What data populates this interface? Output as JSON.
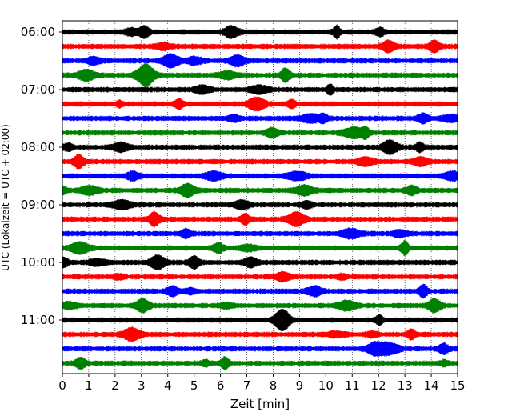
{
  "chart_data": {
    "type": "line",
    "title": "",
    "xlabel": "Zeit  [min]",
    "ylabel": "UTC (Lokalzeit = UTC + 02:00)",
    "xlim": [
      0,
      15
    ],
    "x_ticks": [
      "0",
      "1",
      "2",
      "3",
      "4",
      "5",
      "6",
      "7",
      "8",
      "9",
      "10",
      "11",
      "12",
      "13",
      "14",
      "15"
    ],
    "y_tick_labels": [
      "06:00",
      "07:00",
      "08:00",
      "09:00",
      "10:00",
      "11:00"
    ],
    "grid": "vertical dotted",
    "trace_interval_min": 15,
    "colors": [
      "#000000",
      "#ff0000",
      "#0000ff",
      "#008000"
    ],
    "series": [
      {
        "start": "06:00",
        "color": "#000000"
      },
      {
        "start": "06:15",
        "color": "#ff0000"
      },
      {
        "start": "06:30",
        "color": "#0000ff"
      },
      {
        "start": "06:45",
        "color": "#008000"
      },
      {
        "start": "07:00",
        "color": "#000000"
      },
      {
        "start": "07:15",
        "color": "#ff0000"
      },
      {
        "start": "07:30",
        "color": "#0000ff"
      },
      {
        "start": "07:45",
        "color": "#008000"
      },
      {
        "start": "08:00",
        "color": "#000000"
      },
      {
        "start": "08:15",
        "color": "#ff0000"
      },
      {
        "start": "08:30",
        "color": "#0000ff"
      },
      {
        "start": "08:45",
        "color": "#008000"
      },
      {
        "start": "09:00",
        "color": "#000000"
      },
      {
        "start": "09:15",
        "color": "#ff0000"
      },
      {
        "start": "09:30",
        "color": "#0000ff"
      },
      {
        "start": "09:45",
        "color": "#008000"
      },
      {
        "start": "10:00",
        "color": "#000000"
      },
      {
        "start": "10:15",
        "color": "#ff0000"
      },
      {
        "start": "10:30",
        "color": "#0000ff"
      },
      {
        "start": "10:45",
        "color": "#008000"
      },
      {
        "start": "11:00",
        "color": "#000000"
      },
      {
        "start": "11:15",
        "color": "#ff0000"
      },
      {
        "start": "11:30",
        "color": "#0000ff"
      },
      {
        "start": "11:45",
        "color": "#008000"
      }
    ]
  }
}
